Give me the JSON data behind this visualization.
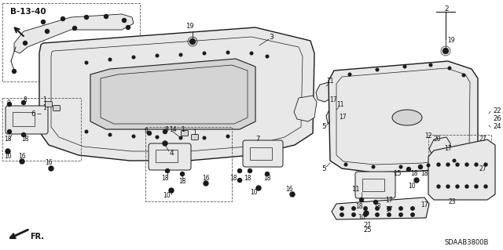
{
  "bg_color": "#ffffff",
  "diagram_code": "B-13-40",
  "part_code": "SDAAB3800B",
  "fig_size": [
    6.4,
    3.19
  ],
  "dpi": 100,
  "line_color": "#1a1a1a",
  "text_color": "#111111",
  "dashed_color": "#555555",
  "gray_fill": "#d4d4d4",
  "light_gray": "#e8e8e8"
}
